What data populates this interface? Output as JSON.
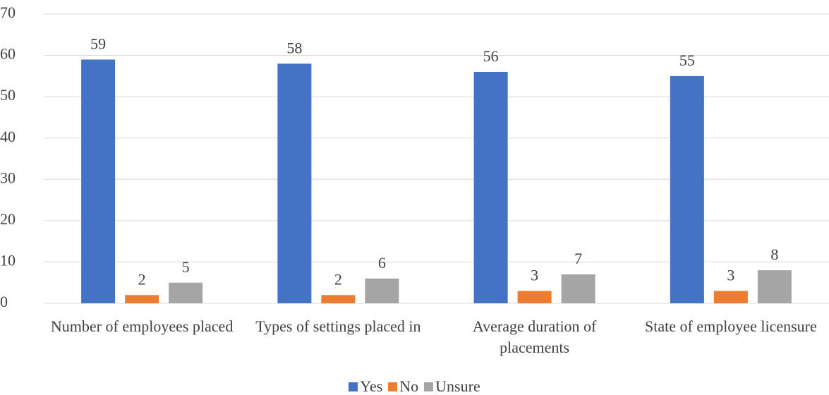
{
  "chart_data": {
    "type": "bar",
    "categories": [
      "Number of employees placed",
      "Types of settings placed in",
      "Average duration of placements",
      "State of employee licensure"
    ],
    "series": [
      {
        "name": "Yes",
        "color": "#4472c4",
        "values": [
          59,
          58,
          56,
          55
        ]
      },
      {
        "name": "No",
        "color": "#ed7d31",
        "values": [
          2,
          2,
          3,
          3
        ]
      },
      {
        "name": "Unsure",
        "color": "#a5a5a5",
        "values": [
          5,
          6,
          7,
          8
        ]
      }
    ],
    "ylim": [
      0,
      70
    ],
    "yticks": [
      0,
      10,
      20,
      30,
      40,
      50,
      60,
      70
    ],
    "grid": true,
    "legend": "bottom"
  }
}
